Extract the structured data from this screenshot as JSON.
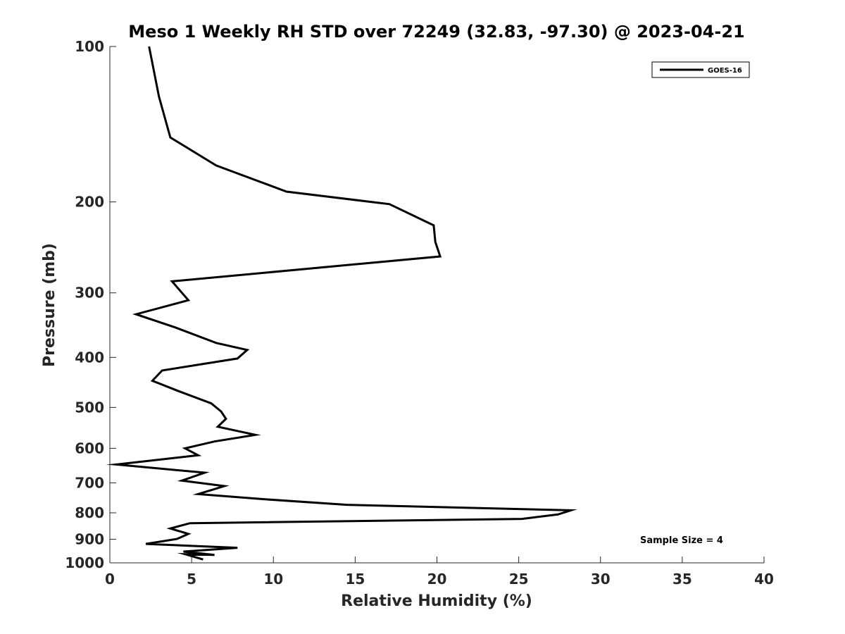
{
  "chart_data": {
    "type": "line",
    "title": "Meso 1 Weekly RH STD over 72249 (32.83, -97.30) @ 2023-04-21",
    "xlabel": "Relative Humidity (%)",
    "ylabel": "Pressure (mb)",
    "xlim": [
      0,
      40
    ],
    "ylim": [
      100,
      1000
    ],
    "y_scale": "log",
    "y_reversed": true,
    "grid": false,
    "x_ticks": [
      0,
      5,
      10,
      15,
      20,
      25,
      30,
      35,
      40
    ],
    "y_ticks": [
      100,
      200,
      300,
      400,
      500,
      600,
      700,
      800,
      900,
      1000
    ],
    "legend": {
      "position": "top-right",
      "entries": [
        "GOES-16"
      ]
    },
    "annotation": "Sample Size = 4",
    "series": [
      {
        "name": "GOES-16",
        "color": "#000000",
        "points": [
          [
            2.4,
            100
          ],
          [
            3.0,
            125
          ],
          [
            3.7,
            150
          ],
          [
            6.5,
            170
          ],
          [
            10.8,
            191
          ],
          [
            17.1,
            202
          ],
          [
            19.8,
            222
          ],
          [
            19.9,
            239
          ],
          [
            20.2,
            255
          ],
          [
            3.8,
            285
          ],
          [
            4.8,
            310
          ],
          [
            1.6,
            330
          ],
          [
            4.0,
            350
          ],
          [
            6.5,
            375
          ],
          [
            8.4,
            387
          ],
          [
            7.8,
            402
          ],
          [
            3.2,
            424
          ],
          [
            2.6,
            444
          ],
          [
            4.2,
            465
          ],
          [
            6.2,
            491
          ],
          [
            6.8,
            509
          ],
          [
            7.1,
            526
          ],
          [
            6.6,
            545
          ],
          [
            8.9,
            565
          ],
          [
            6.4,
            582
          ],
          [
            4.6,
            600
          ],
          [
            5.4,
            619
          ],
          [
            0.4,
            645
          ],
          [
            5.8,
            669
          ],
          [
            4.4,
            693
          ],
          [
            7.0,
            710
          ],
          [
            5.4,
            736
          ],
          [
            9.2,
            752
          ],
          [
            14.5,
            772
          ],
          [
            28.2,
            791
          ],
          [
            27.4,
            806
          ],
          [
            25.2,
            822
          ],
          [
            4.9,
            838
          ],
          [
            3.7,
            858
          ],
          [
            4.8,
            879
          ],
          [
            4.1,
            899
          ],
          [
            2.2,
            919
          ],
          [
            7.8,
            935
          ],
          [
            4.5,
            951
          ],
          [
            6.4,
            965
          ],
          [
            4.6,
            962
          ],
          [
            5.7,
            985
          ]
        ]
      }
    ]
  }
}
